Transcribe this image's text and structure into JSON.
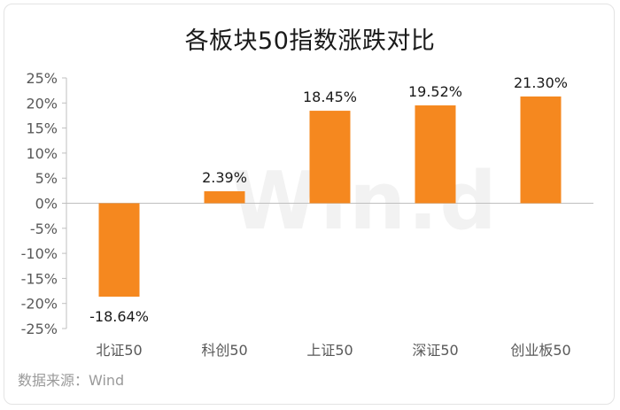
{
  "title": "各板块50指数涨跌对比",
  "source": "数据来源：Wind",
  "watermark": "Win.d",
  "chart_data": {
    "type": "bar",
    "title": "各板块50指数涨跌对比",
    "categories": [
      "北证50",
      "科创50",
      "上证50",
      "深证50",
      "创业板50"
    ],
    "values": [
      -18.64,
      2.39,
      18.45,
      19.52,
      21.3
    ],
    "data_labels": [
      "-18.64%",
      "2.39%",
      "18.45%",
      "19.52%",
      "21.30%"
    ],
    "y_ticks": [
      "25%",
      "20%",
      "15%",
      "10%",
      "5%",
      "0%",
      "-5%",
      "-10%",
      "-15%",
      "-20%",
      "-25%"
    ],
    "ylim": [
      -25,
      25
    ],
    "grid": false,
    "legend": "none",
    "bar_color": "#F5881F"
  }
}
